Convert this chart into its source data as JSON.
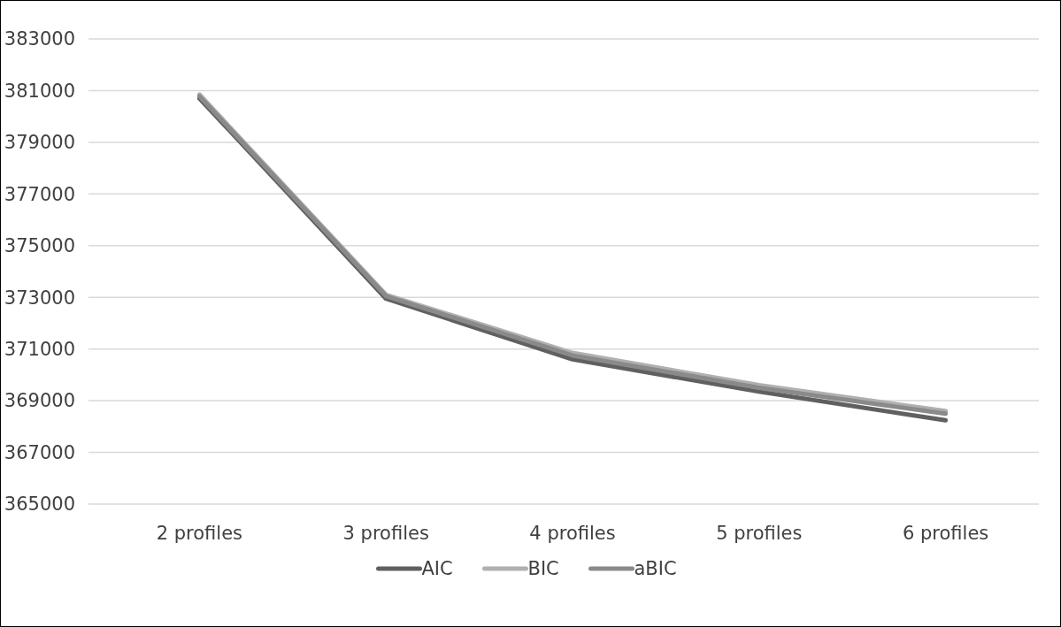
{
  "chart_data": {
    "type": "line",
    "categories": [
      "2 profiles",
      "3 profiles",
      "4 profiles",
      "5 profiles",
      "6 profiles"
    ],
    "series": [
      {
        "name": "AIC",
        "color": "#606060",
        "values": [
          380700,
          372950,
          370600,
          369350,
          368240
        ]
      },
      {
        "name": "BIC",
        "color": "#b0b0b0",
        "values": [
          380850,
          373100,
          370850,
          369600,
          368600
        ]
      },
      {
        "name": "aBIC",
        "color": "#8a8a8a",
        "values": [
          380780,
          373050,
          370750,
          369500,
          368500
        ]
      }
    ],
    "ylim": [
      365000,
      383000
    ],
    "yticks": [
      365000,
      367000,
      369000,
      371000,
      373000,
      375000,
      377000,
      379000,
      381000,
      383000
    ],
    "grid": "y",
    "legend": "bottom",
    "marker": "none",
    "line_style": "solid"
  }
}
